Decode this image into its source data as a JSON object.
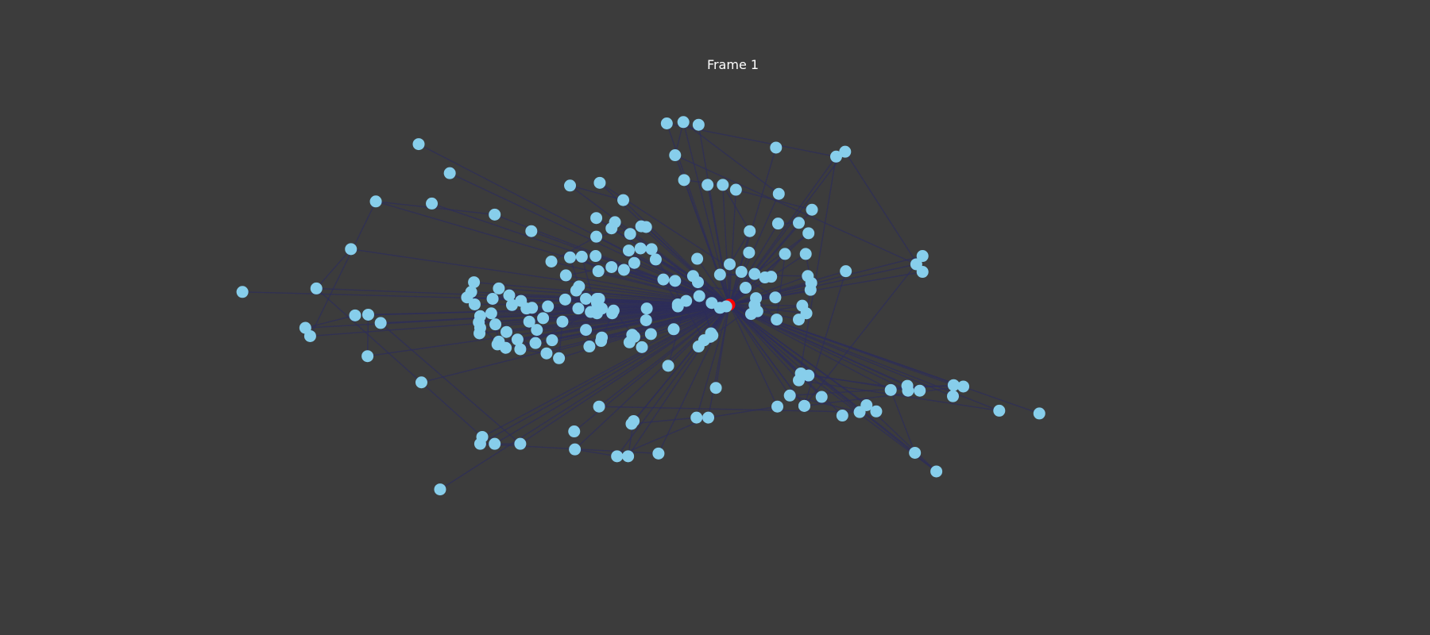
{
  "figure": {
    "title": "Frame 1",
    "background_color": "#3c3c3c",
    "node_color": "#87ceeb",
    "highlight_color": "#ff0000",
    "edge_color": "#2e2e5a"
  },
  "graph": {
    "node_count": 200,
    "highlighted_node": "center-hub"
  }
}
